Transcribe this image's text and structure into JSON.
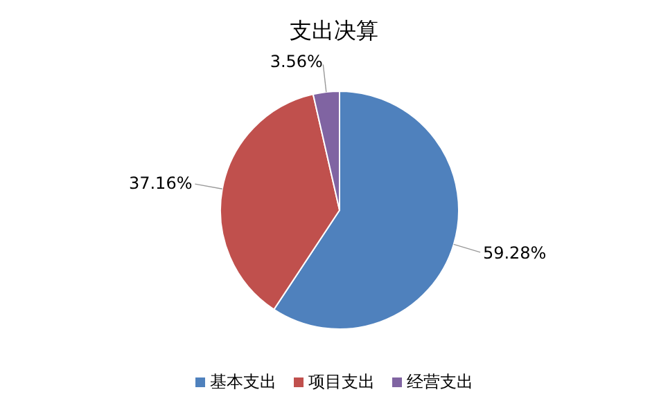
{
  "chart_data": {
    "type": "pie",
    "title": "支出决算",
    "categories": [
      "基本支出",
      "项目支出",
      "经营支出"
    ],
    "values": [
      59.28,
      37.16,
      3.56
    ],
    "colors": [
      "#4f81bd",
      "#c0504d",
      "#8064a2"
    ],
    "value_labels": [
      "59.28%",
      "37.16%",
      "3.56%"
    ],
    "legend": "bottom"
  }
}
